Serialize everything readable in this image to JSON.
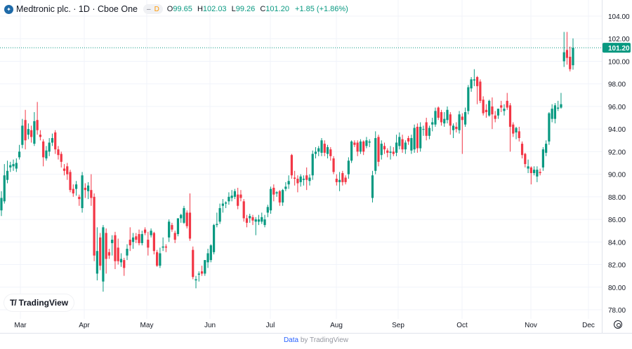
{
  "header": {
    "logo_icon": "medtronic-logo-icon",
    "title": "Medtronic plc. · 1D · Cboe One",
    "badge_dash": "–",
    "badge_letter": "D",
    "ohlc": {
      "o_label": "O",
      "o": "99.65",
      "h_label": "H",
      "h": "102.03",
      "l_label": "L",
      "l": "99.26",
      "c_label": "C",
      "c": "101.20",
      "change": "+1.85 (+1.86%)"
    }
  },
  "watermark": {
    "text": "TradingView",
    "mark": "17"
  },
  "footer": {
    "link": "Data",
    "rest": "by TradingView"
  },
  "settings_icon": "settings-gear-icon",
  "colors": {
    "up": "#089981",
    "down": "#f23645",
    "grid": "#f0f3fa",
    "last_price_bg": "#089981"
  },
  "chart_data": {
    "type": "candlestick",
    "title": "Medtronic plc. · 1D · Cboe One",
    "grid": true,
    "ylim": [
      77,
      105
    ],
    "y_ticks": [
      "78.00",
      "80.00",
      "82.00",
      "84.00",
      "86.00",
      "88.00",
      "90.00",
      "92.00",
      "94.00",
      "96.00",
      "98.00",
      "100.00",
      "102.00",
      "104.00"
    ],
    "x_ticks": [
      "Mar",
      "Apr",
      "May",
      "Jun",
      "Jul",
      "Aug",
      "Sep",
      "Oct",
      "Nov",
      "Dec"
    ],
    "last_price": 101.2,
    "last_price_label": "101.20",
    "candle_format": [
      "open",
      "high",
      "low",
      "close"
    ],
    "candles": [
      [
        86.8,
        88.5,
        86.3,
        87.9
      ],
      [
        87.6,
        90.9,
        87.4,
        89.9
      ],
      [
        89.5,
        91.2,
        89.2,
        90.3
      ],
      [
        90.6,
        91.1,
        90.2,
        90.8
      ],
      [
        90.7,
        91.3,
        90.3,
        90.9
      ],
      [
        90.5,
        91.4,
        90.2,
        91.0
      ],
      [
        91.5,
        92.6,
        91.3,
        92.0
      ],
      [
        92.6,
        94.9,
        92.3,
        94.3
      ],
      [
        94.8,
        95.7,
        92.2,
        93.0
      ],
      [
        93.5,
        94.5,
        93.1,
        94.0
      ],
      [
        93.9,
        94.3,
        92.8,
        93.3
      ],
      [
        92.7,
        95.5,
        92.5,
        94.7
      ],
      [
        94.8,
        96.4,
        93.5,
        93.9
      ],
      [
        93.5,
        93.9,
        93.0,
        93.3
      ],
      [
        92.9,
        93.1,
        90.7,
        91.5
      ],
      [
        91.4,
        92.5,
        91.2,
        92.1
      ],
      [
        92.0,
        93.2,
        91.6,
        92.8
      ],
      [
        92.8,
        93.6,
        92.5,
        93.2
      ],
      [
        93.7,
        93.9,
        91.8,
        92.2
      ],
      [
        92.2,
        92.5,
        91.3,
        91.7
      ],
      [
        91.8,
        92.0,
        90.6,
        91.1
      ],
      [
        90.5,
        90.9,
        89.9,
        90.3
      ],
      [
        90.7,
        91.0,
        89.5,
        90.0
      ],
      [
        90.2,
        90.4,
        88.4,
        88.6
      ],
      [
        88.7,
        89.1,
        88.0,
        88.3
      ],
      [
        88.7,
        89.4,
        88.1,
        89.1
      ],
      [
        88.0,
        88.2,
        87.2,
        87.8
      ],
      [
        87.0,
        90.2,
        86.6,
        89.9
      ],
      [
        88.8,
        89.2,
        87.9,
        88.6
      ],
      [
        88.5,
        89.3,
        87.8,
        89.0
      ],
      [
        88.6,
        90.0,
        87.2,
        87.9
      ],
      [
        88.0,
        88.3,
        82.3,
        82.8
      ],
      [
        81.2,
        85.3,
        80.6,
        83.2
      ],
      [
        84.4,
        84.8,
        81.5,
        81.9
      ],
      [
        80.5,
        85.5,
        79.6,
        85.3
      ],
      [
        84.8,
        85.2,
        81.2,
        82.5
      ],
      [
        83.1,
        83.4,
        82.5,
        82.8
      ],
      [
        83.9,
        84.6,
        82.8,
        84.2
      ],
      [
        84.6,
        84.9,
        81.6,
        82.3
      ],
      [
        83.5,
        84.3,
        82.0,
        82.3
      ],
      [
        82.2,
        83.0,
        81.8,
        82.5
      ],
      [
        82.4,
        82.6,
        81.0,
        81.7
      ],
      [
        82.8,
        83.8,
        82.4,
        83.4
      ],
      [
        84.2,
        85.3,
        83.2,
        83.7
      ],
      [
        84.0,
        84.8,
        83.4,
        84.4
      ],
      [
        84.5,
        84.8,
        83.9,
        84.2
      ],
      [
        84.7,
        85.1,
        83.7,
        83.9
      ],
      [
        83.9,
        85.0,
        83.7,
        84.7
      ],
      [
        85.1,
        85.3,
        84.6,
        84.8
      ],
      [
        84.2,
        84.9,
        82.8,
        83.5
      ],
      [
        84.6,
        85.2,
        84.4,
        85.0
      ],
      [
        84.8,
        84.9,
        82.9,
        83.2
      ],
      [
        83.1,
        83.3,
        81.8,
        81.9
      ],
      [
        81.9,
        83.5,
        81.7,
        83.0
      ],
      [
        83.5,
        84.4,
        83.2,
        83.6
      ],
      [
        83.6,
        83.8,
        83.1,
        83.5
      ],
      [
        84.4,
        86.0,
        84.0,
        85.8
      ],
      [
        85.5,
        85.7,
        84.9,
        85.1
      ],
      [
        84.8,
        85.0,
        83.9,
        84.2
      ],
      [
        84.7,
        86.1,
        84.5,
        86.1
      ],
      [
        86.1,
        86.5,
        85.7,
        86.4
      ],
      [
        85.7,
        87.2,
        85.6,
        87.0
      ],
      [
        86.6,
        86.8,
        85.2,
        85.4
      ],
      [
        86.6,
        88.3,
        84.1,
        84.3
      ],
      [
        83.3,
        83.6,
        80.7,
        80.9
      ],
      [
        80.6,
        81.0,
        79.9,
        80.7
      ],
      [
        81.1,
        81.4,
        80.5,
        81.2
      ],
      [
        81.4,
        81.9,
        81.0,
        81.2
      ],
      [
        81.2,
        82.4,
        81.0,
        82.4
      ],
      [
        82.2,
        83.4,
        81.7,
        83.0
      ],
      [
        82.4,
        83.8,
        82.2,
        83.7
      ],
      [
        83.1,
        85.6,
        82.9,
        85.5
      ],
      [
        85.5,
        86.6,
        85.3,
        85.6
      ],
      [
        85.8,
        87.4,
        85.6,
        87.0
      ],
      [
        87.2,
        87.8,
        86.6,
        87.4
      ],
      [
        87.4,
        87.6,
        87.0,
        87.5
      ],
      [
        87.6,
        88.4,
        87.3,
        88.0
      ],
      [
        87.9,
        88.6,
        87.6,
        88.1
      ],
      [
        88.0,
        88.7,
        87.8,
        88.5
      ],
      [
        88.2,
        88.8,
        86.9,
        87.2
      ],
      [
        88.2,
        88.6,
        87.6,
        87.9
      ],
      [
        87.6,
        87.8,
        85.8,
        86.1
      ],
      [
        86.1,
        86.4,
        85.3,
        85.7
      ],
      [
        86.1,
        86.5,
        85.7,
        86.3
      ],
      [
        86.2,
        86.4,
        85.5,
        85.9
      ],
      [
        85.8,
        86.2,
        84.6,
        86.0
      ],
      [
        85.8,
        86.4,
        85.5,
        86.0
      ],
      [
        85.8,
        86.6,
        85.6,
        86.2
      ],
      [
        85.5,
        86.4,
        85.3,
        86.0
      ],
      [
        86.6,
        87.3,
        86.2,
        87.1
      ],
      [
        86.8,
        88.9,
        86.5,
        88.7
      ],
      [
        88.8,
        89.1,
        87.6,
        88.2
      ],
      [
        88.3,
        88.5,
        88.0,
        88.4
      ],
      [
        88.5,
        88.6,
        87.2,
        87.5
      ],
      [
        87.5,
        88.7,
        87.2,
        88.6
      ],
      [
        88.7,
        89.3,
        88.5,
        88.9
      ],
      [
        89.1,
        89.9,
        88.7,
        89.4
      ],
      [
        91.7,
        91.8,
        89.6,
        89.9
      ],
      [
        89.7,
        90.3,
        89.0,
        89.6
      ],
      [
        89.6,
        89.9,
        88.4,
        89.2
      ],
      [
        89.3,
        90.0,
        88.9,
        89.8
      ],
      [
        89.5,
        89.9,
        89.0,
        89.6
      ],
      [
        89.9,
        90.6,
        88.6,
        89.5
      ],
      [
        89.4,
        90.0,
        89.0,
        89.7
      ],
      [
        89.9,
        92.1,
        89.5,
        91.8
      ],
      [
        91.8,
        92.4,
        91.4,
        92.0
      ],
      [
        92.0,
        92.5,
        91.6,
        92.3
      ],
      [
        91.9,
        93.2,
        91.6,
        93.0
      ],
      [
        92.7,
        93.0,
        91.6,
        91.9
      ],
      [
        91.8,
        92.6,
        91.4,
        92.4
      ],
      [
        92.2,
        92.4,
        91.2,
        91.6
      ],
      [
        91.4,
        91.6,
        90.0,
        90.2
      ],
      [
        89.6,
        90.0,
        89.0,
        89.3
      ],
      [
        89.3,
        90.2,
        88.5,
        89.5
      ],
      [
        90.1,
        90.3,
        89.0,
        89.3
      ],
      [
        89.7,
        89.9,
        89.1,
        89.3
      ],
      [
        90.0,
        91.5,
        89.6,
        91.2
      ],
      [
        91.2,
        93.0,
        91.0,
        92.9
      ],
      [
        92.8,
        93.0,
        92.4,
        92.6
      ],
      [
        92.8,
        93.0,
        91.6,
        92.0
      ],
      [
        92.0,
        93.1,
        91.8,
        92.9
      ],
      [
        92.9,
        93.0,
        91.7,
        92.0
      ],
      [
        92.5,
        93.3,
        92.3,
        93.0
      ],
      [
        92.8,
        93.1,
        92.4,
        92.9
      ],
      [
        87.9,
        90.3,
        87.5,
        89.9
      ],
      [
        90.3,
        93.8,
        90.0,
        93.2
      ],
      [
        93.3,
        93.5,
        90.7,
        91.1
      ],
      [
        91.7,
        93.0,
        91.3,
        92.7
      ],
      [
        92.5,
        92.8,
        91.8,
        92.2
      ],
      [
        92.1,
        92.3,
        91.5,
        91.9
      ],
      [
        91.9,
        92.5,
        91.3,
        92.0
      ],
      [
        92.0,
        92.4,
        91.6,
        91.8
      ],
      [
        91.9,
        93.5,
        91.6,
        92.8
      ],
      [
        92.5,
        93.7,
        92.2,
        93.3
      ],
      [
        93.1,
        93.5,
        91.9,
        92.2
      ],
      [
        92.2,
        93.0,
        91.8,
        92.8
      ],
      [
        93.2,
        93.4,
        92.6,
        92.9
      ],
      [
        92.1,
        93.5,
        91.8,
        93.2
      ],
      [
        92.2,
        94.4,
        91.9,
        94.1
      ],
      [
        94.2,
        94.5,
        91.9,
        92.3
      ],
      [
        92.3,
        94.6,
        92.0,
        94.2
      ],
      [
        94.0,
        94.3,
        93.4,
        94.0
      ],
      [
        94.6,
        95.0,
        93.0,
        93.4
      ],
      [
        93.4,
        94.3,
        93.1,
        94.1
      ],
      [
        94.4,
        95.0,
        93.8,
        94.6
      ],
      [
        94.4,
        95.9,
        94.2,
        95.6
      ],
      [
        95.9,
        96.0,
        94.8,
        95.0
      ],
      [
        95.5,
        95.7,
        94.3,
        94.6
      ],
      [
        94.5,
        95.5,
        94.2,
        94.9
      ],
      [
        94.8,
        96.0,
        94.5,
        95.7
      ],
      [
        95.3,
        95.5,
        93.5,
        94.3
      ],
      [
        93.9,
        94.5,
        93.2,
        94.3
      ],
      [
        94.2,
        94.6,
        93.7,
        94.0
      ],
      [
        93.9,
        95.6,
        93.6,
        95.3
      ],
      [
        95.1,
        95.4,
        91.8,
        94.8
      ],
      [
        94.4,
        95.9,
        94.2,
        95.5
      ],
      [
        95.6,
        97.9,
        95.3,
        97.7
      ],
      [
        97.6,
        98.6,
        97.3,
        98.4
      ],
      [
        98.3,
        99.3,
        97.8,
        98.4
      ],
      [
        98.6,
        98.7,
        96.2,
        97.8
      ],
      [
        98.2,
        98.4,
        96.3,
        96.5
      ],
      [
        96.6,
        96.9,
        95.2,
        95.4
      ],
      [
        95.7,
        96.2,
        95.0,
        95.5
      ],
      [
        95.2,
        96.6,
        95.1,
        96.5
      ],
      [
        96.0,
        96.8,
        94.0,
        95.3
      ],
      [
        95.2,
        95.6,
        94.6,
        94.9
      ],
      [
        95.2,
        95.8,
        94.9,
        95.8
      ],
      [
        96.1,
        96.5,
        95.5,
        95.9
      ],
      [
        95.6,
        96.2,
        95.2,
        95.8
      ],
      [
        96.5,
        97.2,
        95.7,
        95.9
      ],
      [
        96.1,
        96.3,
        92.0,
        94.2
      ],
      [
        94.4,
        94.6,
        93.3,
        93.6
      ],
      [
        93.7,
        94.2,
        93.1,
        94.1
      ],
      [
        93.8,
        94.2,
        92.9,
        93.2
      ],
      [
        92.7,
        92.9,
        91.4,
        91.7
      ],
      [
        91.8,
        91.9,
        90.6,
        90.9
      ],
      [
        90.5,
        91.3,
        90.1,
        90.7
      ],
      [
        90.6,
        90.7,
        89.1,
        90.1
      ],
      [
        90.1,
        90.7,
        89.9,
        90.4
      ],
      [
        89.8,
        90.7,
        89.3,
        90.4
      ],
      [
        90.2,
        90.5,
        89.9,
        90.1
      ],
      [
        90.6,
        92.4,
        90.3,
        92.2
      ],
      [
        91.9,
        93.0,
        91.6,
        92.7
      ],
      [
        92.9,
        95.5,
        92.6,
        95.4
      ],
      [
        94.9,
        96.2,
        94.6,
        95.8
      ],
      [
        94.9,
        96.3,
        94.5,
        96.1
      ],
      [
        95.8,
        96.5,
        95.6,
        95.9
      ],
      [
        95.9,
        97.2,
        95.8,
        96.2
      ],
      [
        100.0,
        102.6,
        99.5,
        100.8
      ],
      [
        101.0,
        102.6,
        99.7,
        100.3
      ],
      [
        100.4,
        101.3,
        99.1,
        99.3
      ],
      [
        99.65,
        102.03,
        99.26,
        101.2
      ]
    ]
  }
}
